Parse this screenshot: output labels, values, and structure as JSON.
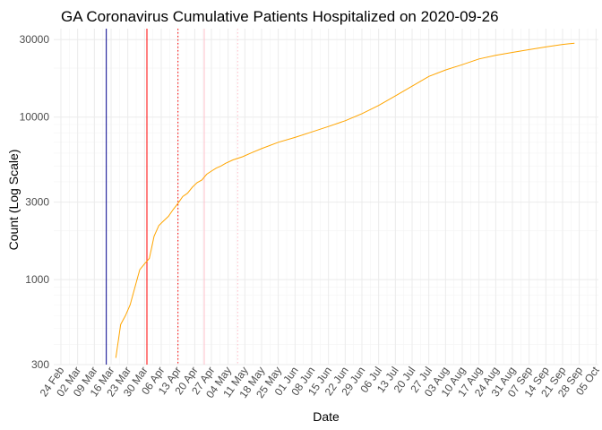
{
  "chart_data": {
    "type": "line",
    "title": "GA Coronavirus Cumulative Patients Hospitalized on 2020-09-26",
    "xlabel": "Date",
    "ylabel": "Count (Log Scale)",
    "y_scale": "log",
    "ylim": [
      300,
      35000
    ],
    "xlim": [
      "2020-02-21",
      "2020-10-06"
    ],
    "x_tick_labels": [
      "24 Feb",
      "02 Mar",
      "09 Mar",
      "16 Mar",
      "23 Mar",
      "30 Mar",
      "06 Apr",
      "13 Apr",
      "20 Apr",
      "27 Apr",
      "04 May",
      "11 May",
      "18 May",
      "25 May",
      "01 Jun",
      "08 Jun",
      "15 Jun",
      "22 Jun",
      "29 Jun",
      "06 Jul",
      "13 Jul",
      "20 Jul",
      "27 Jul",
      "03 Aug",
      "10 Aug",
      "17 Aug",
      "24 Aug",
      "31 Aug",
      "07 Sep",
      "14 Sep",
      "21 Sep",
      "28 Sep",
      "05 Oct"
    ],
    "y_ticks": [
      300,
      1000,
      3000,
      10000,
      30000
    ],
    "y_tick_labels": [
      "300",
      "1000",
      "3000",
      "10000",
      "30000"
    ],
    "grid": true,
    "series": [
      {
        "color": "#ffa500",
        "x": [
          "2020-03-18",
          "2020-03-20",
          "2020-03-22",
          "2020-03-24",
          "2020-03-26",
          "2020-03-28",
          "2020-03-30",
          "2020-04-01",
          "2020-04-03",
          "2020-04-05",
          "2020-04-07",
          "2020-04-09",
          "2020-04-11",
          "2020-04-13",
          "2020-04-15",
          "2020-04-17",
          "2020-04-19",
          "2020-04-21",
          "2020-04-23",
          "2020-04-25",
          "2020-04-27",
          "2020-04-29",
          "2020-05-01",
          "2020-05-03",
          "2020-05-06",
          "2020-05-10",
          "2020-05-14",
          "2020-05-18",
          "2020-05-25",
          "2020-06-01",
          "2020-06-08",
          "2020-06-15",
          "2020-06-22",
          "2020-06-29",
          "2020-07-06",
          "2020-07-13",
          "2020-07-20",
          "2020-07-27",
          "2020-08-03",
          "2020-08-10",
          "2020-08-17",
          "2020-08-24",
          "2020-08-31",
          "2020-09-07",
          "2020-09-14",
          "2020-09-21",
          "2020-09-26"
        ],
        "y": [
          330,
          530,
          600,
          700,
          900,
          1150,
          1250,
          1350,
          1850,
          2150,
          2300,
          2450,
          2700,
          2950,
          3250,
          3400,
          3700,
          3950,
          4100,
          4450,
          4650,
          4850,
          5000,
          5200,
          5450,
          5700,
          6050,
          6400,
          7000,
          7500,
          8100,
          8750,
          9500,
          10500,
          11800,
          13500,
          15500,
          17800,
          19500,
          21000,
          22800,
          24000,
          25000,
          26000,
          27000,
          28000,
          28500
        ]
      }
    ],
    "vlines": [
      {
        "date": "2020-03-14",
        "color": "#00008b",
        "style": "solid"
      },
      {
        "date": "2020-03-31",
        "color": "#ff0000",
        "style": "solid"
      },
      {
        "date": "2020-04-13",
        "color": "#ff0000",
        "style": "dotted"
      },
      {
        "date": "2020-04-24",
        "color": "#ffc0cb",
        "style": "solid"
      },
      {
        "date": "2020-05-08",
        "color": "#ffc0cb",
        "style": "dotted"
      }
    ]
  }
}
